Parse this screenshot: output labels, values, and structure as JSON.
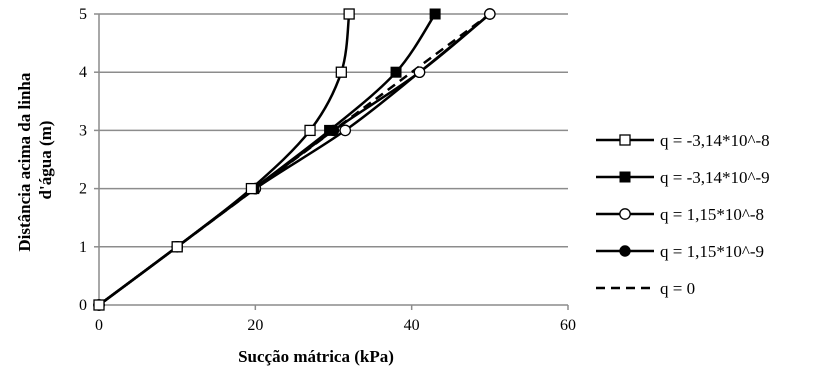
{
  "chart_data": {
    "type": "line",
    "title": "",
    "xlabel": "Sucção mátrica (kPa)",
    "ylabel_lines": [
      "Distância acima da linha",
      "d'água (m)"
    ],
    "xlim": [
      0,
      60
    ],
    "ylim": [
      0,
      5
    ],
    "xticks": [
      0,
      20,
      40,
      60
    ],
    "yticks": [
      0,
      1,
      2,
      3,
      4,
      5
    ],
    "grid": "horizontal",
    "legend_position": "right",
    "series": [
      {
        "name": "q = -3,14*10^-8",
        "marker": "square-open",
        "dash": "solid",
        "x": [
          0,
          10,
          19.5,
          27,
          31,
          32
        ],
        "y": [
          0,
          1,
          2,
          3,
          4,
          5
        ]
      },
      {
        "name": "q = -3,14*10^-9",
        "marker": "square-filled",
        "dash": "solid",
        "x": [
          0,
          10,
          19.8,
          29.5,
          38,
          43
        ],
        "y": [
          0,
          1,
          2,
          3,
          4,
          5
        ]
      },
      {
        "name": "q = 1,15*10^-8",
        "marker": "circle-open",
        "dash": "solid",
        "x": [
          0,
          10,
          20,
          31.5,
          41,
          50
        ],
        "y": [
          0,
          1,
          2,
          3,
          4,
          5
        ]
      },
      {
        "name": "q = 1,15*10^-9",
        "marker": "circle-filled",
        "dash": "solid",
        "x": [
          0,
          10,
          20,
          30,
          41,
          50
        ],
        "y": [
          0,
          1,
          2,
          3,
          4,
          5
        ]
      },
      {
        "name": "q = 0",
        "marker": "none",
        "dash": "dashed",
        "x": [
          0,
          10,
          20,
          30,
          40,
          50
        ],
        "y": [
          0,
          1,
          2,
          3,
          4,
          5
        ]
      }
    ]
  }
}
